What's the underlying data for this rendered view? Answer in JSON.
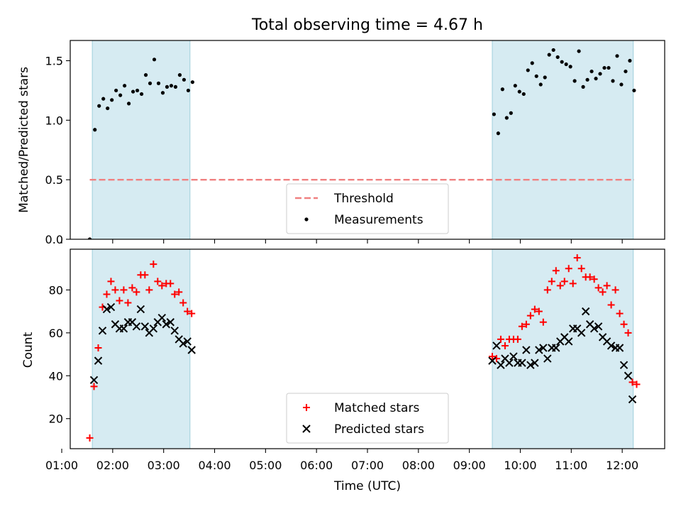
{
  "chart_data": [
    {
      "type": "scatter",
      "title": "Total observing time = 4.67 h",
      "ylabel": "Matched/Predicted stars",
      "xlabel": "",
      "xlim": [
        "01:10",
        "12:50"
      ],
      "ylim": [
        0,
        1.67
      ],
      "yticks": [
        0.0,
        0.5,
        1.0,
        1.5
      ],
      "ytick_labels": [
        "0.0",
        "0.5",
        "1.0",
        "1.5"
      ],
      "legend_position": "lower-center",
      "shaded_intervals": [
        [
          "01:36",
          "03:31"
        ],
        [
          "09:27",
          "12:13"
        ]
      ],
      "threshold": {
        "name": "Threshold",
        "value": 0.5,
        "x_range": [
          "01:33",
          "12:14"
        ],
        "color": "#f08080"
      },
      "series": [
        {
          "name": "Measurements",
          "marker": "dot",
          "color": "#000000",
          "x": [
            "01:33",
            "01:39",
            "01:44",
            "01:49",
            "01:54",
            "01:59",
            "02:04",
            "02:09",
            "02:14",
            "02:19",
            "02:24",
            "02:29",
            "02:34",
            "02:39",
            "02:44",
            "02:49",
            "02:54",
            "02:59",
            "03:04",
            "03:09",
            "03:14",
            "03:19",
            "03:24",
            "03:29",
            "03:34",
            "09:29",
            "09:34",
            "09:39",
            "09:44",
            "09:49",
            "09:54",
            "09:59",
            "10:04",
            "10:09",
            "10:14",
            "10:19",
            "10:24",
            "10:29",
            "10:34",
            "10:39",
            "10:44",
            "10:49",
            "10:54",
            "10:59",
            "11:04",
            "11:09",
            "11:14",
            "11:19",
            "11:24",
            "11:29",
            "11:34",
            "11:39",
            "11:44",
            "11:49",
            "11:54",
            "11:59",
            "12:04",
            "12:09",
            "12:14"
          ],
          "y": [
            0.0,
            0.92,
            1.12,
            1.18,
            1.1,
            1.17,
            1.25,
            1.21,
            1.29,
            1.14,
            1.24,
            1.25,
            1.22,
            1.38,
            1.31,
            1.51,
            1.31,
            1.23,
            1.28,
            1.29,
            1.28,
            1.38,
            1.34,
            1.25,
            1.32,
            1.05,
            0.89,
            1.26,
            1.02,
            1.06,
            1.29,
            1.24,
            1.22,
            1.42,
            1.48,
            1.37,
            1.3,
            1.36,
            1.55,
            1.59,
            1.53,
            1.49,
            1.47,
            1.45,
            1.33,
            1.58,
            1.28,
            1.34,
            1.41,
            1.35,
            1.39,
            1.44,
            1.44,
            1.33,
            1.54,
            1.3,
            1.41,
            1.5,
            1.25
          ]
        }
      ]
    },
    {
      "type": "scatter",
      "title": "",
      "xlabel": "Time (UTC)",
      "ylabel": "Count",
      "xlim": [
        "01:10",
        "12:50"
      ],
      "ylim": [
        6,
        99
      ],
      "xticks": [
        "01:00",
        "02:00",
        "03:00",
        "04:00",
        "05:00",
        "06:00",
        "07:00",
        "08:00",
        "09:00",
        "10:00",
        "11:00",
        "12:00"
      ],
      "yticks": [
        20,
        40,
        60,
        80
      ],
      "ytick_labels": [
        "20",
        "40",
        "60",
        "80"
      ],
      "legend_position": "lower-center",
      "shaded_intervals": [
        [
          "01:36",
          "03:31"
        ],
        [
          "09:27",
          "12:13"
        ]
      ],
      "series": [
        {
          "name": "Matched stars",
          "marker": "plus",
          "color": "#ff0000",
          "x": [
            "01:33",
            "01:38",
            "01:43",
            "01:48",
            "01:53",
            "01:58",
            "02:03",
            "02:08",
            "02:13",
            "02:18",
            "02:23",
            "02:28",
            "02:33",
            "02:38",
            "02:43",
            "02:48",
            "02:53",
            "02:58",
            "03:03",
            "03:08",
            "03:13",
            "03:18",
            "03:23",
            "03:28",
            "03:33",
            "09:27",
            "09:32",
            "09:37",
            "09:42",
            "09:47",
            "09:52",
            "09:57",
            "10:02",
            "10:07",
            "10:12",
            "10:17",
            "10:22",
            "10:27",
            "10:32",
            "10:37",
            "10:42",
            "10:47",
            "10:52",
            "10:57",
            "11:02",
            "11:07",
            "11:12",
            "11:17",
            "11:22",
            "11:27",
            "11:32",
            "11:37",
            "11:42",
            "11:47",
            "11:52",
            "11:57",
            "12:02",
            "12:07",
            "12:12",
            "12:17"
          ],
          "y": [
            11,
            35,
            53,
            72,
            78,
            84,
            80,
            75,
            80,
            74,
            81,
            79,
            87,
            87,
            80,
            92,
            84,
            82,
            83,
            83,
            78,
            79,
            74,
            70,
            69,
            49,
            48,
            57,
            54,
            57,
            57,
            57,
            63,
            64,
            68,
            71,
            70,
            65,
            80,
            84,
            89,
            82,
            84,
            90,
            83,
            95,
            90,
            86,
            86,
            85,
            81,
            79,
            82,
            73,
            80,
            69,
            64,
            60,
            37,
            36
          ]
        },
        {
          "name": "Predicted stars",
          "marker": "x",
          "color": "#000000",
          "x": [
            "01:38",
            "01:43",
            "01:48",
            "01:53",
            "01:58",
            "02:03",
            "02:08",
            "02:13",
            "02:18",
            "02:23",
            "02:28",
            "02:33",
            "02:38",
            "02:43",
            "02:48",
            "02:53",
            "02:58",
            "03:03",
            "03:08",
            "03:13",
            "03:18",
            "03:23",
            "03:28",
            "03:33",
            "09:27",
            "09:32",
            "09:37",
            "09:42",
            "09:47",
            "09:52",
            "09:57",
            "10:02",
            "10:07",
            "10:12",
            "10:17",
            "10:22",
            "10:27",
            "10:32",
            "10:37",
            "10:42",
            "10:47",
            "10:52",
            "10:57",
            "11:02",
            "11:07",
            "11:12",
            "11:17",
            "11:22",
            "11:27",
            "11:32",
            "11:37",
            "11:42",
            "11:47",
            "11:52",
            "11:57",
            "12:02",
            "12:07",
            "12:12"
          ],
          "y": [
            38,
            47,
            61,
            71,
            72,
            64,
            62,
            62,
            65,
            65,
            63,
            71,
            63,
            60,
            62,
            65,
            67,
            64,
            65,
            61,
            57,
            55,
            56,
            52,
            47,
            54,
            45,
            48,
            46,
            49,
            46,
            46,
            52,
            45,
            46,
            52,
            53,
            48,
            53,
            53,
            56,
            58,
            56,
            62,
            62,
            60,
            70,
            64,
            62,
            63,
            58,
            56,
            54,
            53,
            53,
            45,
            40,
            29
          ]
        }
      ]
    }
  ]
}
